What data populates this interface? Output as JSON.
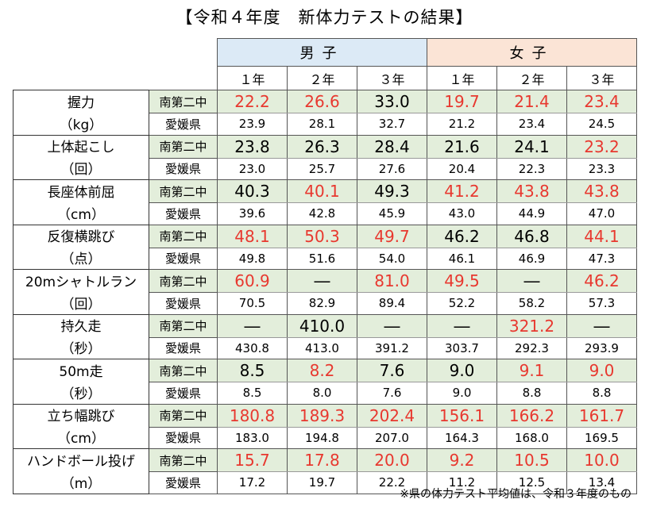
{
  "title": "【令和４年度　新体力テストの結果】",
  "groups": {
    "boys": "男子",
    "girls": "女子"
  },
  "grades": [
    "１年",
    "２年",
    "３年",
    "１年",
    "２年",
    "３年"
  ],
  "row_labels": {
    "school": "南第二中",
    "prefecture": "愛媛県"
  },
  "events": [
    {
      "name": "握力",
      "unit": "（kg）",
      "school": [
        "22.2",
        "26.6",
        "33.0",
        "19.7",
        "21.4",
        "23.4"
      ],
      "school_above_pref": [
        false,
        false,
        true,
        false,
        false,
        false
      ],
      "prefecture": [
        "23.9",
        "28.1",
        "32.7",
        "21.2",
        "23.4",
        "24.5"
      ]
    },
    {
      "name": "上体起こし",
      "unit": "（回）",
      "school": [
        "23.8",
        "26.3",
        "28.4",
        "21.6",
        "24.1",
        "23.2"
      ],
      "school_above_pref": [
        true,
        true,
        true,
        true,
        true,
        false
      ],
      "prefecture": [
        "23.0",
        "25.7",
        "27.6",
        "20.4",
        "22.3",
        "23.3"
      ]
    },
    {
      "name": "長座体前屈",
      "unit": "（cm）",
      "school": [
        "40.3",
        "40.1",
        "49.3",
        "41.2",
        "43.8",
        "43.8"
      ],
      "school_above_pref": [
        true,
        false,
        true,
        false,
        false,
        false
      ],
      "prefecture": [
        "39.6",
        "42.8",
        "45.9",
        "43.0",
        "44.9",
        "47.0"
      ]
    },
    {
      "name": "反復横跳び",
      "unit": "（点）",
      "school": [
        "48.1",
        "50.3",
        "49.7",
        "46.2",
        "46.8",
        "44.1"
      ],
      "school_above_pref": [
        false,
        false,
        false,
        true,
        true,
        false
      ],
      "prefecture": [
        "49.8",
        "51.6",
        "54.0",
        "46.1",
        "46.9",
        "47.3"
      ]
    },
    {
      "name": "20mシャトルラン",
      "unit": "（回）",
      "school": [
        "60.9",
        "―",
        "81.0",
        "49.5",
        "―",
        "46.2"
      ],
      "school_above_pref": [
        false,
        true,
        false,
        false,
        true,
        false
      ],
      "prefecture": [
        "70.5",
        "82.9",
        "89.4",
        "52.2",
        "58.2",
        "57.3"
      ]
    },
    {
      "name": "持久走",
      "unit": "（秒）",
      "school": [
        "―",
        "410.0",
        "―",
        "―",
        "321.2",
        "―"
      ],
      "school_above_pref": [
        true,
        true,
        true,
        true,
        false,
        true
      ],
      "prefecture": [
        "430.8",
        "413.0",
        "391.2",
        "303.7",
        "292.3",
        "293.9"
      ]
    },
    {
      "name": "50m走",
      "unit": "（秒）",
      "school": [
        "8.5",
        "8.2",
        "7.6",
        "9.0",
        "9.1",
        "9.0"
      ],
      "school_above_pref": [
        true,
        false,
        true,
        true,
        false,
        false
      ],
      "prefecture": [
        "8.5",
        "8.0",
        "7.6",
        "9.0",
        "8.8",
        "8.8"
      ]
    },
    {
      "name": "立ち幅跳び",
      "unit": "（cm）",
      "school": [
        "180.8",
        "189.3",
        "202.4",
        "156.1",
        "166.2",
        "161.7"
      ],
      "school_above_pref": [
        false,
        false,
        false,
        false,
        false,
        false
      ],
      "prefecture": [
        "183.0",
        "194.8",
        "207.0",
        "164.3",
        "168.0",
        "169.5"
      ]
    },
    {
      "name": "ハンドボール投げ",
      "unit": "（m）",
      "school": [
        "15.7",
        "17.8",
        "20.0",
        "9.2",
        "10.5",
        "10.0"
      ],
      "school_above_pref": [
        false,
        false,
        false,
        false,
        false,
        false
      ],
      "prefecture": [
        "17.2",
        "19.7",
        "22.2",
        "11.2",
        "12.5",
        "13.4"
      ]
    }
  ],
  "colors": {
    "below_pref": "#e8382f",
    "boys_header": "#dceaf6",
    "girls_header": "#fbe4d6",
    "school_row": "#e3eedb"
  },
  "note": "※県の体力テスト平均値は、令和３年度のもの"
}
